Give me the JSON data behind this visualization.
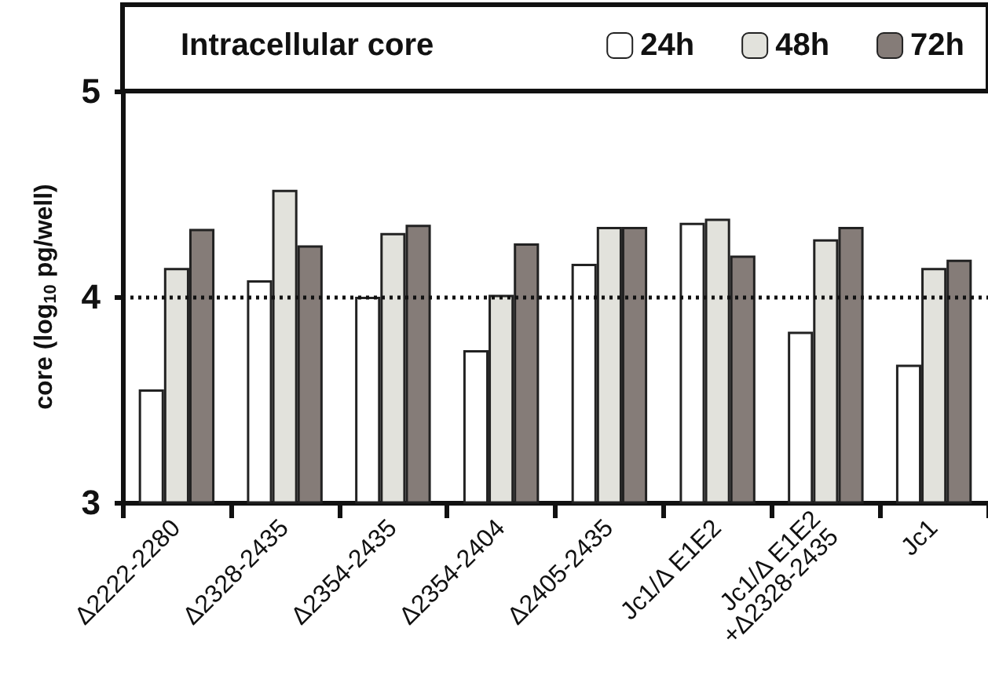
{
  "chart_data": {
    "type": "bar",
    "legend_title": "Intracellular core",
    "ylabel": "core (log$_{10}$ pg/well)",
    "categories": [
      "Δ2222-2280",
      "Δ2328-2435",
      "Δ2354-2435",
      "Δ2354-2404",
      "Δ2405-2435",
      "Jc1/Δ E1E2",
      "Jc1/Δ E1E2\n+Δ2328-2435",
      "Jc1"
    ],
    "series": [
      {
        "name": "24h",
        "color": "#ffffff",
        "values": [
          3.55,
          4.08,
          4.0,
          3.74,
          4.16,
          4.36,
          3.83,
          3.67
        ]
      },
      {
        "name": "48h",
        "color": "#e2e2dc",
        "values": [
          4.14,
          4.52,
          4.31,
          4.01,
          4.34,
          4.38,
          4.28,
          4.14
        ]
      },
      {
        "name": "72h",
        "color": "#857c78",
        "values": [
          4.33,
          4.25,
          4.35,
          4.26,
          4.34,
          4.2,
          4.34,
          4.18
        ]
      }
    ],
    "ylim": [
      3,
      5
    ],
    "yticks": [
      3,
      4,
      5
    ],
    "grid": false,
    "legend": "top",
    "ref_lines": [
      {
        "axis": "y",
        "value": 4,
        "line_style": "dotted"
      }
    ]
  }
}
